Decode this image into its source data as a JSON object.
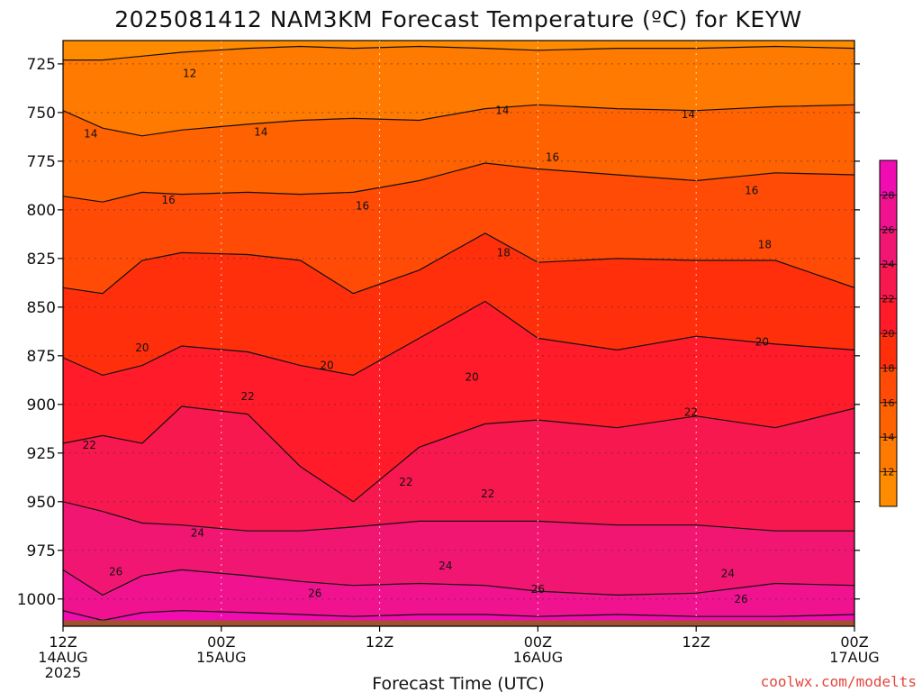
{
  "chart_data": {
    "type": "heatmap",
    "title": "2025081412 NAM3KM Forecast Temperature (ºC) for KEYW",
    "xlabel": "Forecast Time (UTC)",
    "ylabel": "",
    "x_ticks": [
      {
        "hours": 0,
        "lines": [
          "12Z",
          "14AUG",
          "2025"
        ]
      },
      {
        "hours": 12,
        "lines": [
          "00Z",
          "15AUG"
        ]
      },
      {
        "hours": 24,
        "lines": [
          "12Z"
        ]
      },
      {
        "hours": 36,
        "lines": [
          "00Z",
          "16AUG"
        ]
      },
      {
        "hours": 48,
        "lines": [
          "12Z"
        ]
      },
      {
        "hours": 60,
        "lines": [
          "00Z",
          "17AUG"
        ]
      }
    ],
    "xlim_hours": [
      0,
      60
    ],
    "y_ticks": [
      725,
      750,
      775,
      800,
      825,
      850,
      875,
      900,
      925,
      950,
      975,
      1000
    ],
    "ylim_hPa": [
      713,
      1014
    ],
    "surface_hPa": 1011,
    "contour_levels": [
      12,
      14,
      16,
      18,
      20,
      22,
      24,
      26,
      28
    ],
    "isotherms": [
      {
        "value": 12,
        "pressure_hPa": [
          723,
          723,
          721,
          719,
          717,
          716,
          717,
          716,
          717,
          718,
          717,
          717,
          716,
          717
        ]
      },
      {
        "value": 14,
        "pressure_hPa": [
          749,
          758,
          762,
          759,
          756,
          754,
          753,
          754,
          748,
          746,
          748,
          749,
          747,
          746
        ]
      },
      {
        "value": 16,
        "pressure_hPa": [
          793,
          796,
          791,
          792,
          791,
          792,
          791,
          785,
          776,
          779,
          782,
          785,
          781,
          782
        ]
      },
      {
        "value": 18,
        "pressure_hPa": [
          840,
          843,
          826,
          822,
          823,
          826,
          843,
          831,
          812,
          827,
          825,
          826,
          826,
          840
        ]
      },
      {
        "value": 20,
        "pressure_hPa": [
          876,
          885,
          880,
          870,
          873,
          880,
          885,
          866,
          847,
          866,
          872,
          865,
          869,
          872
        ]
      },
      {
        "value": 22,
        "pressure_hPa": [
          920,
          916,
          920,
          901,
          905,
          932,
          950,
          922,
          910,
          908,
          912,
          906,
          912,
          902
        ]
      },
      {
        "value": 24,
        "pressure_hPa": [
          950,
          955,
          961,
          962,
          965,
          965,
          963,
          960,
          960,
          960,
          962,
          962,
          965,
          965
        ]
      },
      {
        "value": 26,
        "pressure_hPa": [
          985,
          998,
          988,
          985,
          988,
          991,
          993,
          992,
          993,
          996,
          998,
          997,
          992,
          993
        ]
      },
      {
        "value": 28,
        "pressure_hPa": [
          1006,
          1011,
          1007,
          1006,
          1007,
          1008,
          1009,
          1008,
          1008,
          1009,
          1008,
          1009,
          1009,
          1008
        ]
      }
    ],
    "isotherm_hours": [
      0,
      3,
      6,
      9,
      14,
      18,
      22,
      27,
      32,
      36,
      42,
      48,
      54,
      60
    ],
    "contour_labels": [
      {
        "text": "12",
        "hours": 9.6,
        "hPa": 730
      },
      {
        "text": "14",
        "hours": 2.1,
        "hPa": 761
      },
      {
        "text": "14",
        "hours": 15,
        "hPa": 760
      },
      {
        "text": "14",
        "hours": 33.3,
        "hPa": 749
      },
      {
        "text": "14",
        "hours": 47.4,
        "hPa": 751
      },
      {
        "text": "16",
        "hours": 8,
        "hPa": 795
      },
      {
        "text": "16",
        "hours": 22.7,
        "hPa": 798
      },
      {
        "text": "16",
        "hours": 37.1,
        "hPa": 773
      },
      {
        "text": "16",
        "hours": 52.2,
        "hPa": 790
      },
      {
        "text": "18",
        "hours": 33.4,
        "hPa": 822
      },
      {
        "text": "18",
        "hours": 53.2,
        "hPa": 818
      },
      {
        "text": "20",
        "hours": 6,
        "hPa": 871
      },
      {
        "text": "20",
        "hours": 20,
        "hPa": 880
      },
      {
        "text": "20",
        "hours": 31,
        "hPa": 886
      },
      {
        "text": "20",
        "hours": 53,
        "hPa": 868
      },
      {
        "text": "22",
        "hours": 2,
        "hPa": 921
      },
      {
        "text": "22",
        "hours": 14,
        "hPa": 896
      },
      {
        "text": "22",
        "hours": 26,
        "hPa": 940
      },
      {
        "text": "22",
        "hours": 32.2,
        "hPa": 946
      },
      {
        "text": "22",
        "hours": 47.6,
        "hPa": 904
      },
      {
        "text": "24",
        "hours": 10.2,
        "hPa": 966
      },
      {
        "text": "24",
        "hours": 29,
        "hPa": 983
      },
      {
        "text": "24",
        "hours": 50.4,
        "hPa": 987
      },
      {
        "text": "26",
        "hours": 4,
        "hPa": 986
      },
      {
        "text": "26",
        "hours": 19.1,
        "hPa": 997
      },
      {
        "text": "26",
        "hours": 36,
        "hPa": 995
      },
      {
        "text": "26",
        "hours": 51.4,
        "hPa": 1000
      }
    ],
    "colorbar": {
      "ticks": [
        12,
        14,
        16,
        18,
        20,
        22,
        24,
        26,
        28
      ],
      "colors": [
        "#ff8b00",
        "#ff7a00",
        "#ff6200",
        "#ff4b06",
        "#ff2f0c",
        "#ff1b2a",
        "#f7184f",
        "#f21673",
        "#f0128f",
        "#f00cb0"
      ]
    },
    "ground_color": "#a0522d",
    "fill_top_color": "#ff8b00"
  },
  "footer": {
    "credit": "coolwx.com/modelts"
  }
}
